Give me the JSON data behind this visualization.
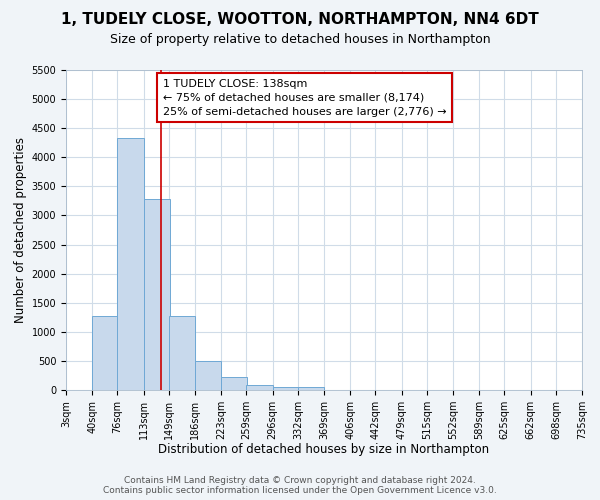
{
  "title": "1, TUDELY CLOSE, WOOTTON, NORTHAMPTON, NN4 6DT",
  "subtitle": "Size of property relative to detached houses in Northampton",
  "xlabel": "Distribution of detached houses by size in Northampton",
  "ylabel": "Number of detached properties",
  "bin_edges": [
    3,
    40,
    76,
    113,
    149,
    186,
    223,
    259,
    296,
    332,
    369,
    406,
    442,
    479,
    515,
    552,
    589,
    625,
    662,
    698,
    735
  ],
  "bar_heights": [
    0,
    1270,
    4330,
    3280,
    1280,
    490,
    220,
    90,
    60,
    50,
    0,
    0,
    0,
    0,
    0,
    0,
    0,
    0,
    0,
    0
  ],
  "bar_color": "#c8d9ec",
  "bar_edge_color": "#6fa8d5",
  "property_size": 138,
  "red_line_color": "#cc0000",
  "annotation_text": "1 TUDELY CLOSE: 138sqm\n← 75% of detached houses are smaller (8,174)\n25% of semi-detached houses are larger (2,776) →",
  "annotation_box_color": "#ffffff",
  "annotation_box_edge_color": "#cc0000",
  "ylim": [
    0,
    5500
  ],
  "yticks": [
    0,
    500,
    1000,
    1500,
    2000,
    2500,
    3000,
    3500,
    4000,
    4500,
    5000,
    5500
  ],
  "background_color": "#f0f4f8",
  "plot_background_color": "#ffffff",
  "grid_color": "#d0dce8",
  "footer_text": "Contains HM Land Registry data © Crown copyright and database right 2024.\nContains public sector information licensed under the Open Government Licence v3.0.",
  "title_fontsize": 11,
  "subtitle_fontsize": 9,
  "xlabel_fontsize": 8.5,
  "ylabel_fontsize": 8.5,
  "tick_label_fontsize": 7,
  "annotation_fontsize": 8,
  "footer_fontsize": 6.5
}
